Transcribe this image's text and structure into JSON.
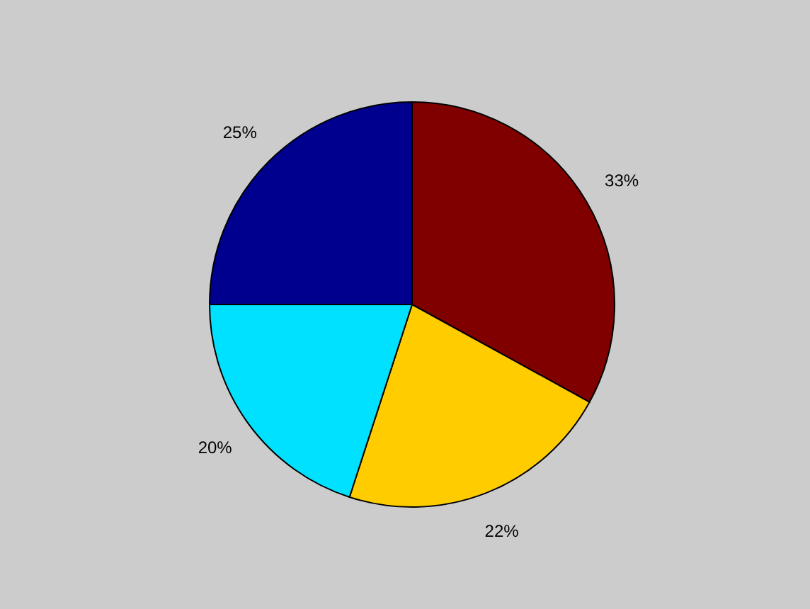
{
  "chart_data": {
    "type": "pie",
    "categories": [
      null,
      null,
      null,
      null
    ],
    "values": [
      33,
      22,
      20,
      25
    ],
    "colors": [
      "#800000",
      "#ffcc00",
      "#00e1ff",
      "#00008f"
    ],
    "value_labels": [
      "33%",
      "22%",
      "20%",
      "25%"
    ]
  }
}
